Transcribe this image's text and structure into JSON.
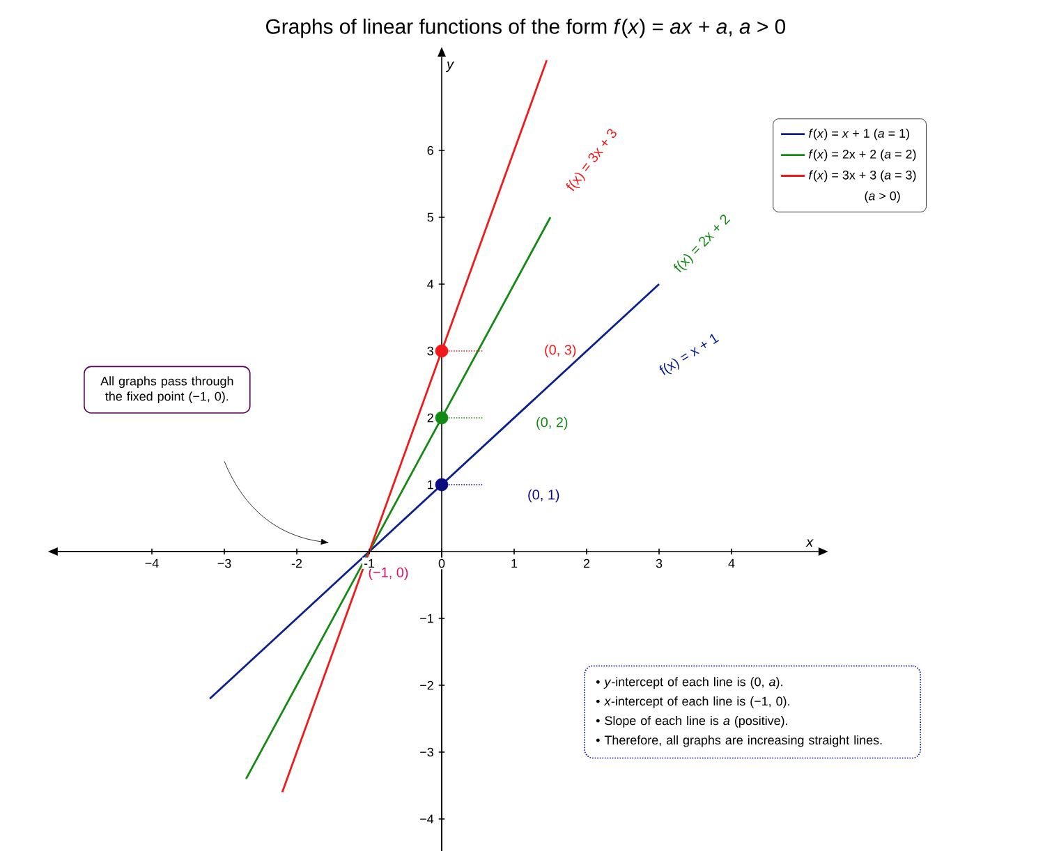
{
  "chart_data": {
    "type": "line",
    "title": "Graphs of linear functions of the form *f*(*x*) = *ax* + *a*, *a* > 0",
    "xlabel": "*x*",
    "ylabel": "*y*",
    "xlim": [
      -5.3,
      5.2
    ],
    "ylim": [
      -4.6,
      7.4
    ],
    "xticks": [
      {
        "value": -4,
        "label": "−4"
      },
      {
        "value": -3,
        "label": "−3"
      },
      -2,
      -1,
      0,
      1,
      2,
      3,
      4
    ],
    "yticks": [
      {
        "value": -4,
        "label": "−4"
      },
      {
        "value": -3,
        "label": "−3"
      },
      {
        "value": -2,
        "label": "−2"
      },
      {
        "value": -1,
        "label": "−1"
      },
      1,
      2,
      3,
      4,
      5,
      6
    ],
    "legend": "top right",
    "series": [
      {
        "name": "*f*(*x*) = *x* + 1    (*a* = 1)",
        "color": "#0b1f8f",
        "x": [
          -3.2,
          3
        ],
        "values": [
          -2.2,
          4
        ]
      },
      {
        "name": "*f*(*x*) = 2x + 2  (*a* = 2)",
        "color": "#138a13",
        "x": [
          -2.7,
          1.5
        ],
        "values": [
          -3.4,
          5
        ]
      },
      {
        "name": "*f*(*x*) = 3x + 3  (*a* = 3)",
        "color": "#f01a1a",
        "x": [
          -2.2,
          1.45
        ],
        "values": [
          -3.6,
          7.35
        ]
      },
      {
        "type": "scatter",
        "color": "#0b0b80",
        "x": [
          0
        ],
        "values": [
          1
        ]
      },
      {
        "type": "scatter",
        "color": "#138a13",
        "x": [
          0
        ],
        "values": [
          2
        ]
      },
      {
        "type": "scatter",
        "color": "#f01a1a",
        "x": [
          0
        ],
        "values": [
          3
        ]
      }
    ],
    "annotations": [
      "f(x) = x + 1",
      "f(x) = 2x + 2",
      "f(x) = 3x + 3",
      "(0, 1)",
      "(0, 2)",
      "(0, 3)",
      {
        "text": "(−1, 0)",
        "x": -1,
        "y": 0
      },
      "All graphs pass through the fixed point (−1, 0).",
      "(*a* > 0)",
      "• *y*-intercept of each line is (0, *a*).",
      "• *x*-intercept of each line is (−1, 0).",
      "• Slope of each line is *a* (positive).",
      "• Therefore, all graphs are increasing straight lines."
    ]
  }
}
